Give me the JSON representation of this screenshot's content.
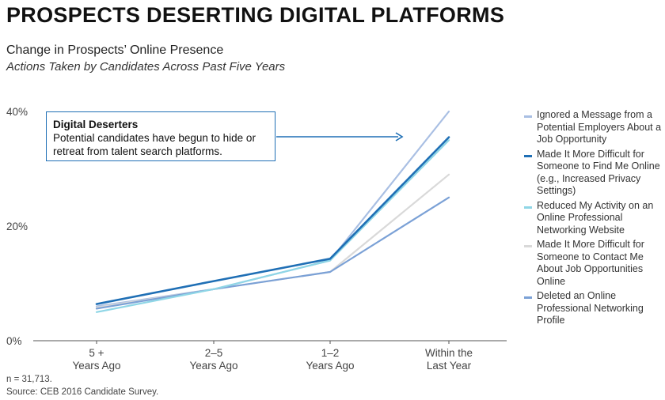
{
  "title": "PROSPECTS DESERTING DIGITAL PLATFORMS",
  "subtitle": "Change in Prospects’ Online Presence",
  "subsubtitle": "Actions Taken by Candidates Across Past Five Years",
  "callout": {
    "title": "Digital Deserters",
    "body": "Potential candidates have begun to hide or retreat from talent search platforms."
  },
  "notes": {
    "n": "n = 31,713.",
    "source": "Source: CEB 2016 Candidate Survey."
  },
  "chart_data": {
    "type": "line",
    "categories": [
      "5 + Years Ago",
      "2–5 Years Ago",
      "1–2 Years Ago",
      "Within the Last Year"
    ],
    "category_lines": [
      [
        "5 +",
        "Years Ago"
      ],
      [
        "2–5",
        "Years Ago"
      ],
      [
        "1–2",
        "Years Ago"
      ],
      [
        "Within the",
        "Last Year"
      ]
    ],
    "ylim": [
      0,
      40
    ],
    "yticks": [
      0,
      20,
      40
    ],
    "ytick_labels": [
      "0%",
      "20%",
      "40%"
    ],
    "series": [
      {
        "name": "Ignored a Message from a Potential Employers About a Job Opportunity",
        "color": "#a9bfe3",
        "values": [
          6,
          9,
          14,
          40
        ]
      },
      {
        "name": "Made It More Difficult for Someone to Contact Me About Job Opportunities Online",
        "color": "#d9d9d9",
        "values": [
          5.8,
          9,
          12,
          29
        ]
      },
      {
        "name": "Deleted an Online Professional Networking Profile",
        "color": "#7ba1d6",
        "values": [
          5.6,
          9,
          12,
          25
        ]
      },
      {
        "name": "Reduced My Activity on an Online Professional Networking Website",
        "color": "#8fd6e6",
        "values": [
          5,
          9,
          14,
          35
        ]
      },
      {
        "name": "Made It More Difficult for Someone to Find Me Online (e.g., Increased Privacy Settings)",
        "color": "#1f6fb5",
        "values": [
          6.4,
          10.4,
          14.3,
          35.5
        ]
      }
    ],
    "legend_order": [
      0,
      4,
      3,
      1,
      2
    ],
    "legend_position": "right"
  }
}
